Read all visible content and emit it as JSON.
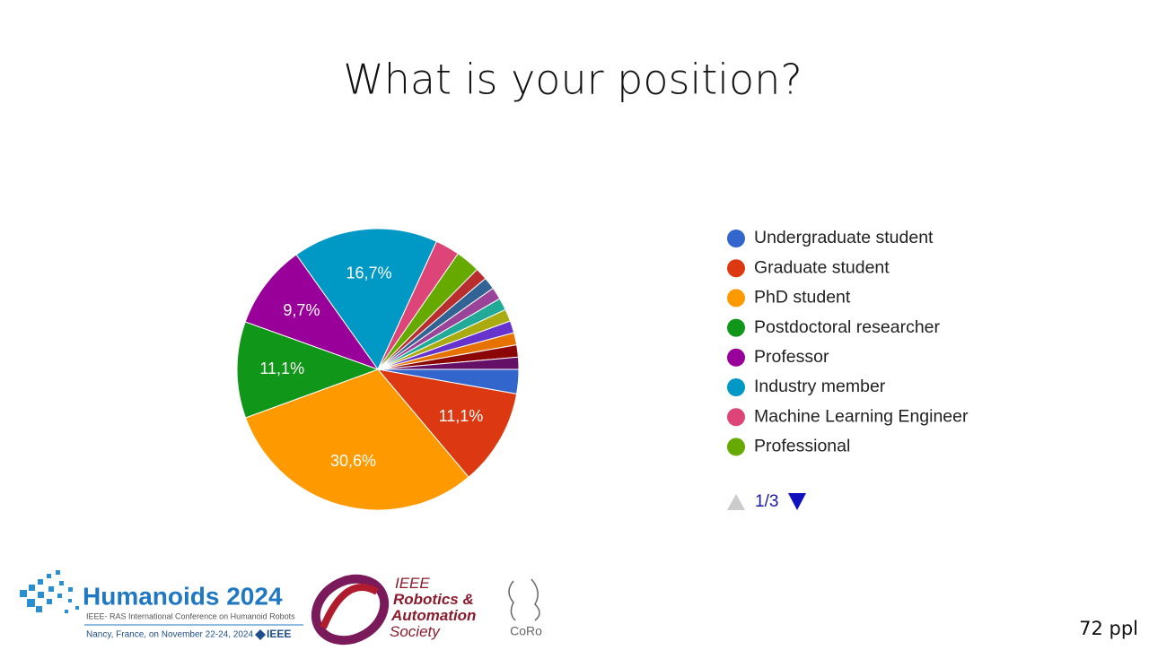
{
  "chart_data": {
    "type": "pie",
    "title": "What is your position?",
    "categories": [
      "Undergraduate student",
      "Graduate student",
      "PhD student",
      "Postdoctoral researcher",
      "Professor",
      "Industry member",
      "Machine Learning Engineer",
      "Professional",
      null,
      null,
      null,
      null,
      null,
      null,
      null,
      null,
      null
    ],
    "values": [
      2.8,
      11.1,
      30.6,
      11.1,
      9.7,
      16.7,
      2.8,
      2.8,
      1.4,
      1.4,
      1.4,
      1.4,
      1.4,
      1.4,
      1.4,
      1.4,
      1.4
    ],
    "value_labels": [
      null,
      "11,1%",
      "30,6%",
      "11,1%",
      "9,7%",
      "16,7%",
      null,
      null,
      null,
      null,
      null,
      null,
      null,
      null,
      null,
      null,
      null
    ],
    "colors": [
      "#3366cc",
      "#dc3912",
      "#ff9900",
      "#109618",
      "#990099",
      "#0099c6",
      "#dd4477",
      "#66aa00",
      "#b82e2e",
      "#316395",
      "#994499",
      "#22aa99",
      "#aaaa11",
      "#6633cc",
      "#e67300",
      "#8b0707",
      "#651067"
    ],
    "legend_position": "right",
    "legend_page": "1/3"
  },
  "respondents": "72 ppl",
  "logos": {
    "humanoids": "Humanoids 2024",
    "conference": "IEEE- RAS International Conference on Humanoid Robots",
    "place": "Nancy, France, on November 22-24, 2024",
    "ieee": "IEEE",
    "ras": [
      "IEEE",
      "Robotics &",
      "Automation",
      "Society"
    ],
    "coro": "CoRo"
  }
}
